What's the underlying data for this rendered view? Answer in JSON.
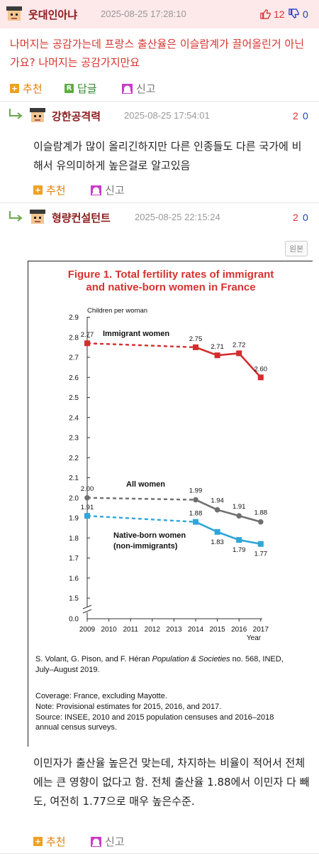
{
  "comments": [
    {
      "nickname": "웃대인아냐",
      "timestamp": "2025-08-25 17:28:10",
      "up": "12",
      "down": "0",
      "text": "나머지는 공감가는데 프랑스 출산율은 이슬람계가 끌어올린거 아닌가요? 나머지는 공감가지만요",
      "actions": {
        "recommend": "추천",
        "reply": "답글",
        "report": "신고"
      }
    },
    {
      "nickname": "강한공격력",
      "timestamp": "2025-08-25 17:54:01",
      "up": "2",
      "down": "0",
      "text": "이슬람계가 많이 올리긴하지만 다른 인종들도 다른 국가에 비해서 유의미하게 높은걸로 알고있음",
      "actions": {
        "recommend": "추천",
        "report": "신고"
      }
    },
    {
      "nickname": "형량컨설턴트",
      "timestamp": "2025-08-25 22:15:24",
      "up": "2",
      "down": "0",
      "original_button": "원본",
      "text": "이민자가 출산율 높은건 맞는데, 차지하는 비율이 적어서 전체에는 큰 영향이 없다고 함. 전체 출산율 1.88에서 이민자 다 빼도, 여전히 1.77으로 매우 높은수준.",
      "actions": {
        "recommend": "추천",
        "report": "신고"
      }
    }
  ],
  "colors": {
    "header_bg": "#fde8ea",
    "immigrant": "#d42d2d",
    "all": "#707070",
    "native": "#2ea6d8",
    "title": "#d7332f"
  },
  "chart_data": {
    "type": "line",
    "title_line1": "Figure 1. Total fertility rates of immigrant",
    "title_line2": "and native-born women in France",
    "ylabel": "Children per woman",
    "xlabel": "Year",
    "ylim": [
      0.0,
      2.9
    ],
    "y_ticks": [
      "0.0",
      "1.5",
      "1.6",
      "1.7",
      "1.8",
      "1.9",
      "2.0",
      "2.1",
      "2.2",
      "2.3",
      "2.4",
      "2.5",
      "2.6",
      "2.7",
      "2.8",
      "2.9"
    ],
    "x_ticks": [
      "2009",
      "2010",
      "2011",
      "2012",
      "2013",
      "2014",
      "2015",
      "2016",
      "2017"
    ],
    "series": [
      {
        "name": "Immigrant women",
        "label": "Immigrant women",
        "color": "#d42d2d",
        "marker": "square",
        "points": [
          {
            "x": 2009,
            "y": 2.77,
            "label": "2.77"
          },
          {
            "x": 2014,
            "y": 2.75,
            "label": "2.75"
          },
          {
            "x": 2015,
            "y": 2.71,
            "label": "2.71"
          },
          {
            "x": 2016,
            "y": 2.72,
            "label": "2.72"
          },
          {
            "x": 2017,
            "y": 2.6,
            "label": "2.60"
          }
        ]
      },
      {
        "name": "All women",
        "label": "All women",
        "color": "#707070",
        "marker": "circle",
        "points": [
          {
            "x": 2009,
            "y": 2.0,
            "label": "2.00"
          },
          {
            "x": 2014,
            "y": 1.99,
            "label": "1.99"
          },
          {
            "x": 2015,
            "y": 1.94,
            "label": "1.94"
          },
          {
            "x": 2016,
            "y": 1.91,
            "label": "1.91"
          },
          {
            "x": 2017,
            "y": 1.88,
            "label": "1.88"
          }
        ]
      },
      {
        "name": "Native-born women (non-immigrants)",
        "label": "Native-born women",
        "label2": "(non-immigrants)",
        "color": "#2ea6d8",
        "marker": "square",
        "points": [
          {
            "x": 2009,
            "y": 1.91,
            "label": "1.91"
          },
          {
            "x": 2014,
            "y": 1.88,
            "label": "1.88"
          },
          {
            "x": 2015,
            "y": 1.83,
            "label": "1.83"
          },
          {
            "x": 2016,
            "y": 1.79,
            "label": "1.79"
          },
          {
            "x": 2017,
            "y": 1.77,
            "label": "1.77"
          }
        ]
      }
    ],
    "source_authors": "S. Volant, G. Pison, and F. Héran ",
    "source_journal": "Population & Societies",
    "source_rest": " no. 568, INED,",
    "source_line2": "July–August 2019.",
    "coverage": "Coverage: France, excluding Mayotte.",
    "note": "Note: Provisional estimates for 2015, 2016, and 2017.",
    "source_line": "Source: INSEE, 2010 and 2015 population censuses and 2016–2018",
    "source_line_end": "annual census surveys."
  }
}
